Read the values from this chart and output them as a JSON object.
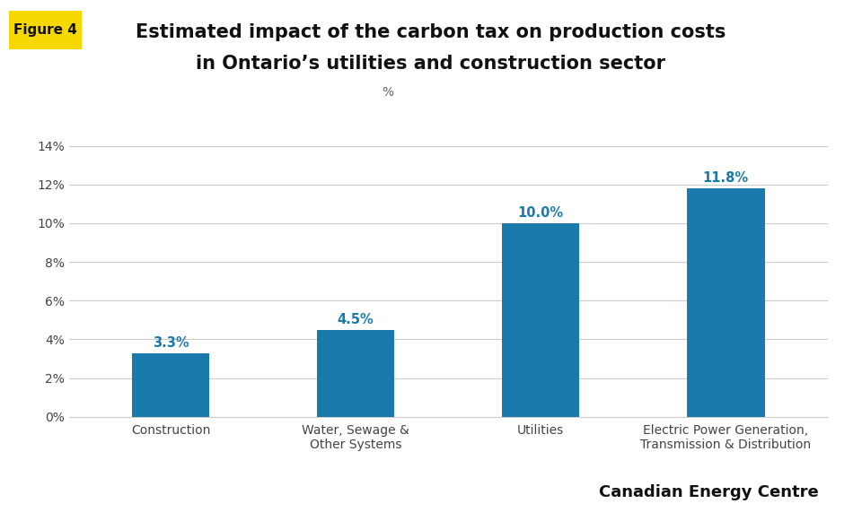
{
  "title_line1": "Estimated impact of the carbon tax on production costs",
  "title_line2": "in Ontario’s utilities and construction sector",
  "ylabel": "%",
  "categories": [
    "Construction",
    "Water, Sewage &\nOther Systems",
    "Utilities",
    "Electric Power Generation,\nTransmission & Distribution"
  ],
  "values": [
    3.3,
    4.5,
    10.0,
    11.8
  ],
  "labels": [
    "3.3%",
    "4.5%",
    "10.0%",
    "11.8%"
  ],
  "bar_color": "#1a7aab",
  "ylim": [
    0,
    14
  ],
  "yticks": [
    0,
    2,
    4,
    6,
    8,
    10,
    12,
    14
  ],
  "ytick_labels": [
    "0%",
    "2%",
    "4%",
    "6%",
    "8%",
    "10%",
    "12%",
    "14%"
  ],
  "figure_label": "Figure 4",
  "figure_label_bg": "#f5d800",
  "watermark": "Canadian Energy Centre",
  "background_color": "#ffffff",
  "grid_color": "#cccccc",
  "bar_label_color": "#1a7aab",
  "title_fontsize": 15,
  "label_fontsize": 10.5,
  "tick_fontsize": 10,
  "watermark_fontsize": 13
}
